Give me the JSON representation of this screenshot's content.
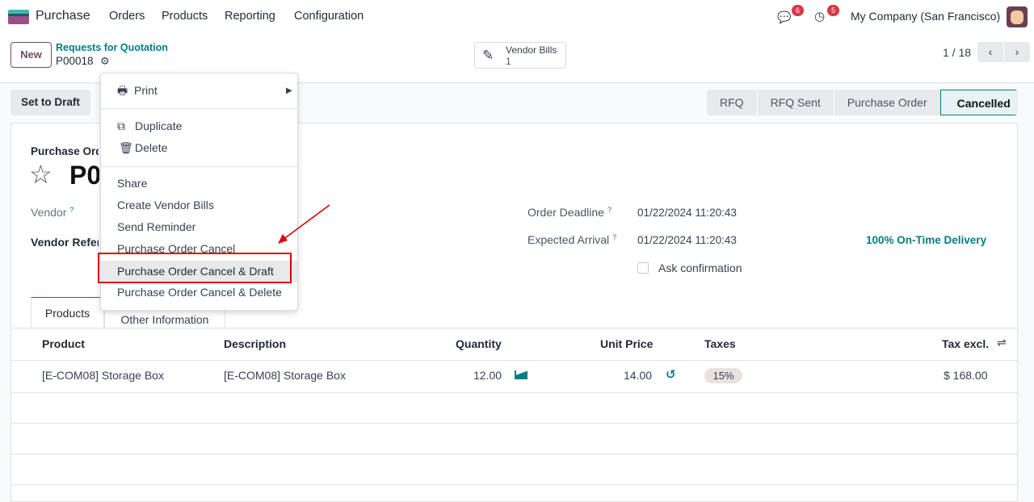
{
  "app": {
    "name": "Purchase",
    "menu": [
      "Orders",
      "Products",
      "Reporting",
      "Configuration"
    ],
    "messages_count": "6",
    "activities_count": "5",
    "company": "My Company (San Francisco)"
  },
  "control": {
    "new_label": "New",
    "breadcrumb": "Requests for Quotation",
    "record": "P00018",
    "vendor_bills_label": "Vendor Bills",
    "vendor_bills_count": "1",
    "pager": "1 / 18"
  },
  "actions": {
    "set_to_draft": "Set to Draft"
  },
  "statusbar": {
    "stages": [
      "RFQ",
      "RFQ Sent",
      "Purchase Order",
      "Cancelled"
    ],
    "active": "Cancelled"
  },
  "menu": {
    "print": "Print",
    "duplicate": "Duplicate",
    "delete": "Delete",
    "items": [
      "Share",
      "Create Vendor Bills",
      "Send Reminder",
      "Purchase Order Cancel",
      "Purchase Order Cancel & Draft",
      "Purchase Order Cancel & Delete"
    ],
    "highlighted": "Purchase Order Cancel & Draft"
  },
  "form": {
    "type_label": "Purchase Ord",
    "title": "P0",
    "vendor_label": "Vendor",
    "vendor_ref_label": "Vendor Refer",
    "deadline_label": "Order Deadline",
    "deadline": "01/22/2024 11:20:43",
    "arrival_label": "Expected Arrival",
    "arrival": "01/22/2024 11:20:43",
    "on_time": "100% On-Time Delivery",
    "ask_confirmation": "Ask confirmation",
    "help": "?"
  },
  "tabs": [
    "Products",
    "Other Information"
  ],
  "table": {
    "headers": [
      "Product",
      "Description",
      "Quantity",
      "Unit Price",
      "Taxes",
      "Tax excl."
    ],
    "rows": [
      {
        "product": "[E-COM08] Storage Box",
        "description": "[E-COM08] Storage Box",
        "quantity": "12.00",
        "unit_price": "14.00",
        "taxes": "15%",
        "subtotal": "$ 168.00"
      }
    ]
  },
  "colors": {
    "accent": "#017e84",
    "brand": "#714b67",
    "highlight_box": "#e00000"
  }
}
